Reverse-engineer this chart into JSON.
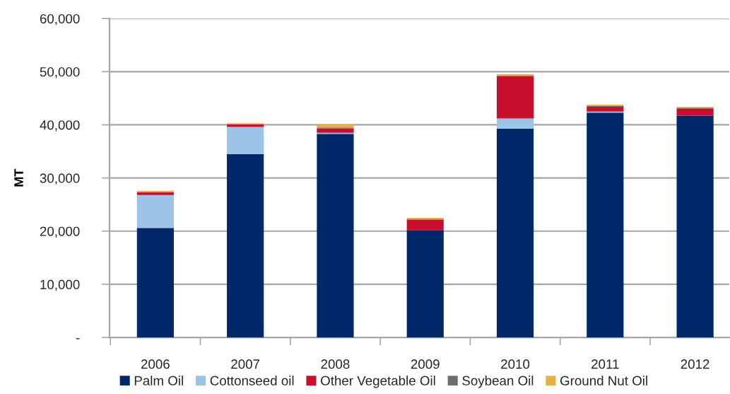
{
  "chart_data": {
    "type": "bar",
    "stacked": true,
    "ylabel": "MT",
    "categories": [
      "2006",
      "2007",
      "2008",
      "2009",
      "2010",
      "2011",
      "2012"
    ],
    "series": [
      {
        "name": "Palm Oil",
        "color": "#002868",
        "values": [
          20600,
          34500,
          38300,
          20200,
          39300,
          42300,
          41700
        ]
      },
      {
        "name": "Cottonseed oil",
        "color": "#9dc3e6",
        "values": [
          6200,
          5100,
          200,
          0,
          1900,
          200,
          0
        ]
      },
      {
        "name": "Other Vegetable Oil",
        "color": "#c8102e",
        "values": [
          500,
          500,
          800,
          2000,
          8000,
          900,
          1300
        ]
      },
      {
        "name": "Soybean Oil",
        "color": "#6d6d6d",
        "values": [
          0,
          0,
          200,
          0,
          0,
          200,
          200
        ]
      },
      {
        "name": "Ground Nut Oil",
        "color": "#e6b043",
        "values": [
          300,
          200,
          600,
          300,
          300,
          200,
          200
        ]
      }
    ],
    "ylim": [
      0,
      60000
    ],
    "yticks": [
      {
        "value": 0,
        "label": "-"
      },
      {
        "value": 10000,
        "label": "10,000"
      },
      {
        "value": 20000,
        "label": "20,000"
      },
      {
        "value": 30000,
        "label": "30,000"
      },
      {
        "value": 40000,
        "label": "40,000"
      },
      {
        "value": 50000,
        "label": "50,000"
      },
      {
        "value": 60000,
        "label": "60,000"
      }
    ],
    "grid": "y",
    "legend": "bottom"
  }
}
